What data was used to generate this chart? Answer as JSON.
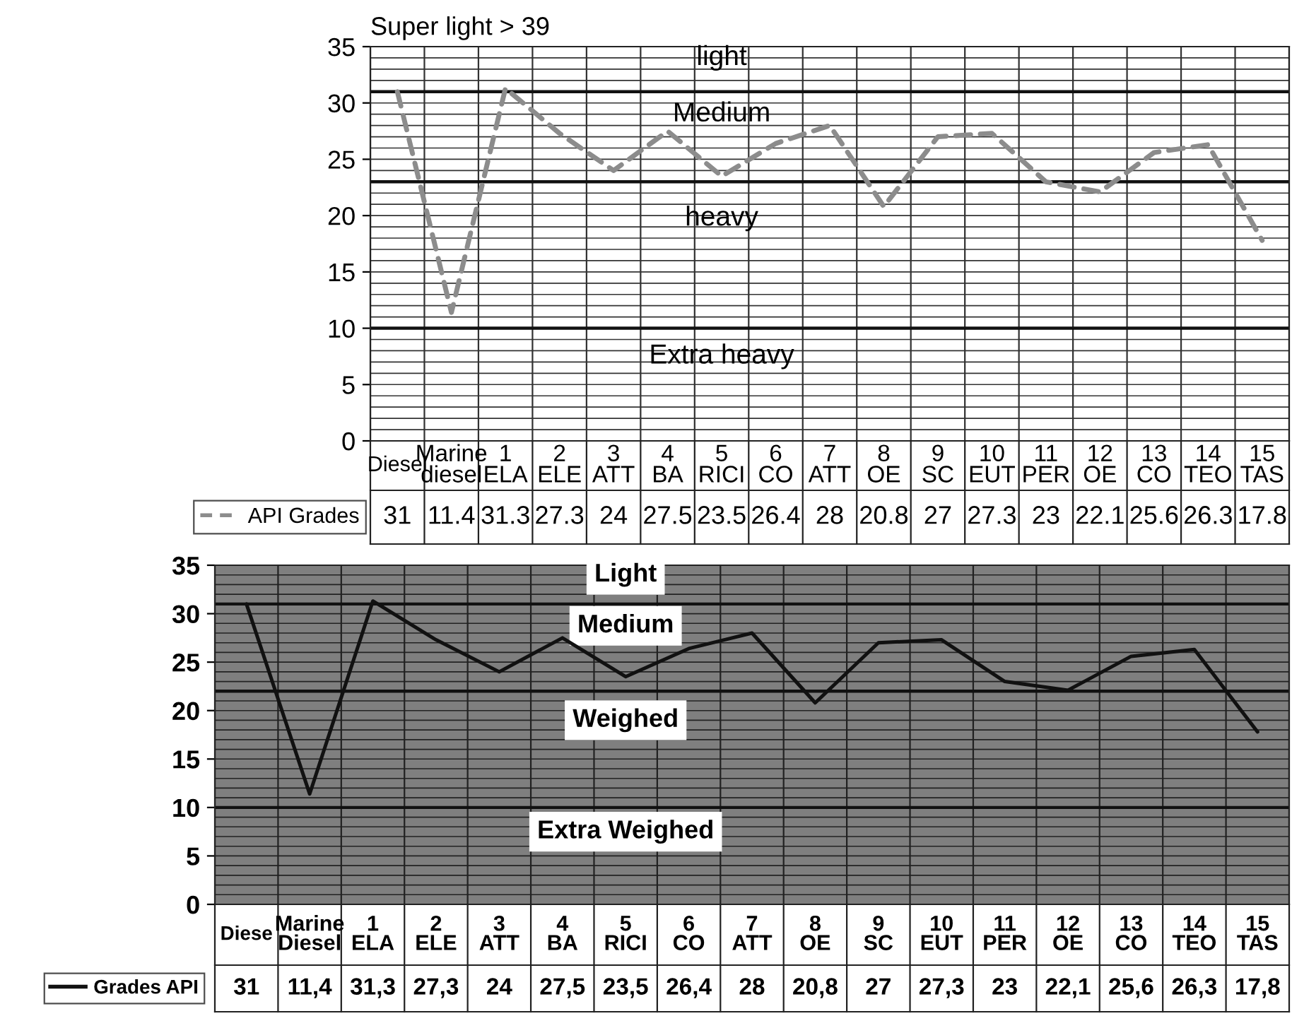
{
  "chart_data": [
    {
      "type": "line",
      "title": "Super light > 39",
      "categories": [
        "Diesel",
        "Marine\ndiesel",
        "1\nELA",
        "2\nELE",
        "3\nATT",
        "4\nBA",
        "5\nRICI",
        "6\nCO",
        "7\nATT",
        "8\nOE",
        "9\nSC",
        "10\nEUT",
        "11\nPER",
        "12\nOE",
        "13\nCO",
        "14\nTEO",
        "15\nTAS"
      ],
      "series": [
        {
          "name": "API Grades",
          "color": "#8c8c8c",
          "line_style": "dashed",
          "values": [
            31,
            11.4,
            31.3,
            27.3,
            24,
            27.5,
            23.5,
            26.4,
            28,
            20.8,
            27,
            27.3,
            23,
            22.1,
            25.6,
            26.3,
            17.8
          ],
          "value_labels": [
            "31",
            "11.4",
            "31.3",
            "27.3",
            "24",
            "27.5",
            "23.5",
            "26.4",
            "28",
            "20.8",
            "27",
            "27.3",
            "23",
            "22.1",
            "25.6",
            "26.3",
            "17.8"
          ]
        }
      ],
      "ylim": [
        0,
        35
      ],
      "yticks": [
        0,
        5,
        10,
        15,
        20,
        25,
        30,
        35
      ],
      "grid": true,
      "legend": "bottom left",
      "marker": "none",
      "ref_lines": [
        {
          "axis": "y",
          "value": 31
        },
        {
          "axis": "y",
          "value": 23
        },
        {
          "axis": "y",
          "value": 10
        }
      ],
      "annotations": [
        "light",
        "Medium",
        "heavy",
        "Extra heavy"
      ]
    },
    {
      "type": "line",
      "categories": [
        "Diese",
        "Marine\nDiesel",
        "1\nELA",
        "2\nELE",
        "3\nATT",
        "4\nBA",
        "5\nRICI",
        "6\nCO",
        "7\nATT",
        "8\nOE",
        "9\nSC",
        "10\nEUT",
        "11\nPER",
        "12\nOE",
        "13\nCO",
        "14\nTEO",
        "15\nTAS"
      ],
      "series": [
        {
          "name": "Grades API",
          "color": "#111111",
          "line_style": "solid",
          "values": [
            31,
            11.4,
            31.3,
            27.3,
            24,
            27.5,
            23.5,
            26.4,
            28,
            20.8,
            27,
            27.3,
            23,
            22.1,
            25.6,
            26.3,
            17.8
          ],
          "value_labels": [
            "31",
            "11,4",
            "31,3",
            "27,3",
            "24",
            "27,5",
            "23,5",
            "26,4",
            "28",
            "20,8",
            "27",
            "27,3",
            "23",
            "22,1",
            "25,6",
            "26,3",
            "17,8"
          ]
        }
      ],
      "ylim": [
        0,
        35
      ],
      "yticks": [
        0,
        5,
        10,
        15,
        20,
        25,
        30,
        35
      ],
      "grid": true,
      "legend": "bottom left",
      "marker": "none",
      "ref_lines": [
        {
          "axis": "y",
          "value": 31
        },
        {
          "axis": "y",
          "value": 22
        },
        {
          "axis": "y",
          "value": 10
        }
      ],
      "annotations": [
        "Light",
        "Medium",
        "Weighed",
        "Extra Weighed"
      ]
    }
  ]
}
